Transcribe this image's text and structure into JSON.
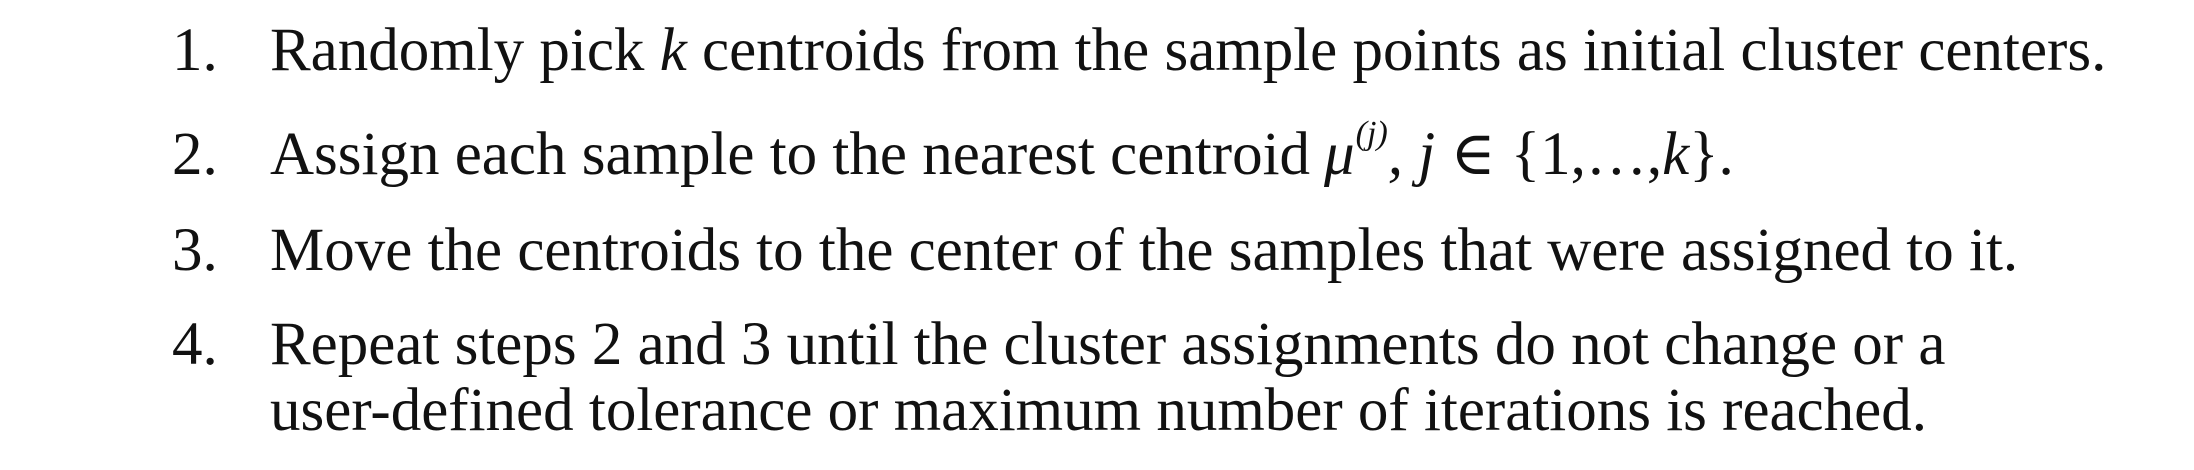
{
  "steps": [
    {
      "number": "1.",
      "before": "Randomly pick ",
      "var": "k",
      "after": " centroids from the sample points as initial cluster centers."
    },
    {
      "number": "2.",
      "before": "Assign each sample to the nearest centroid",
      "mu": "μ",
      "mu_sup": "(j)",
      "sep": ",  ",
      "index_var": "j",
      "member": " ∈ ",
      "set_open": "{1,…,",
      "set_var": "k",
      "set_close": "}",
      "end": "."
    },
    {
      "number": "3.",
      "text": "Move the centroids to the center of the samples that were assigned to it."
    },
    {
      "number": "4.",
      "line1": "Repeat steps 2 and 3 until the cluster assignments do not change or a",
      "line2": "user-defined tolerance or maximum number of iterations is reached."
    }
  ]
}
